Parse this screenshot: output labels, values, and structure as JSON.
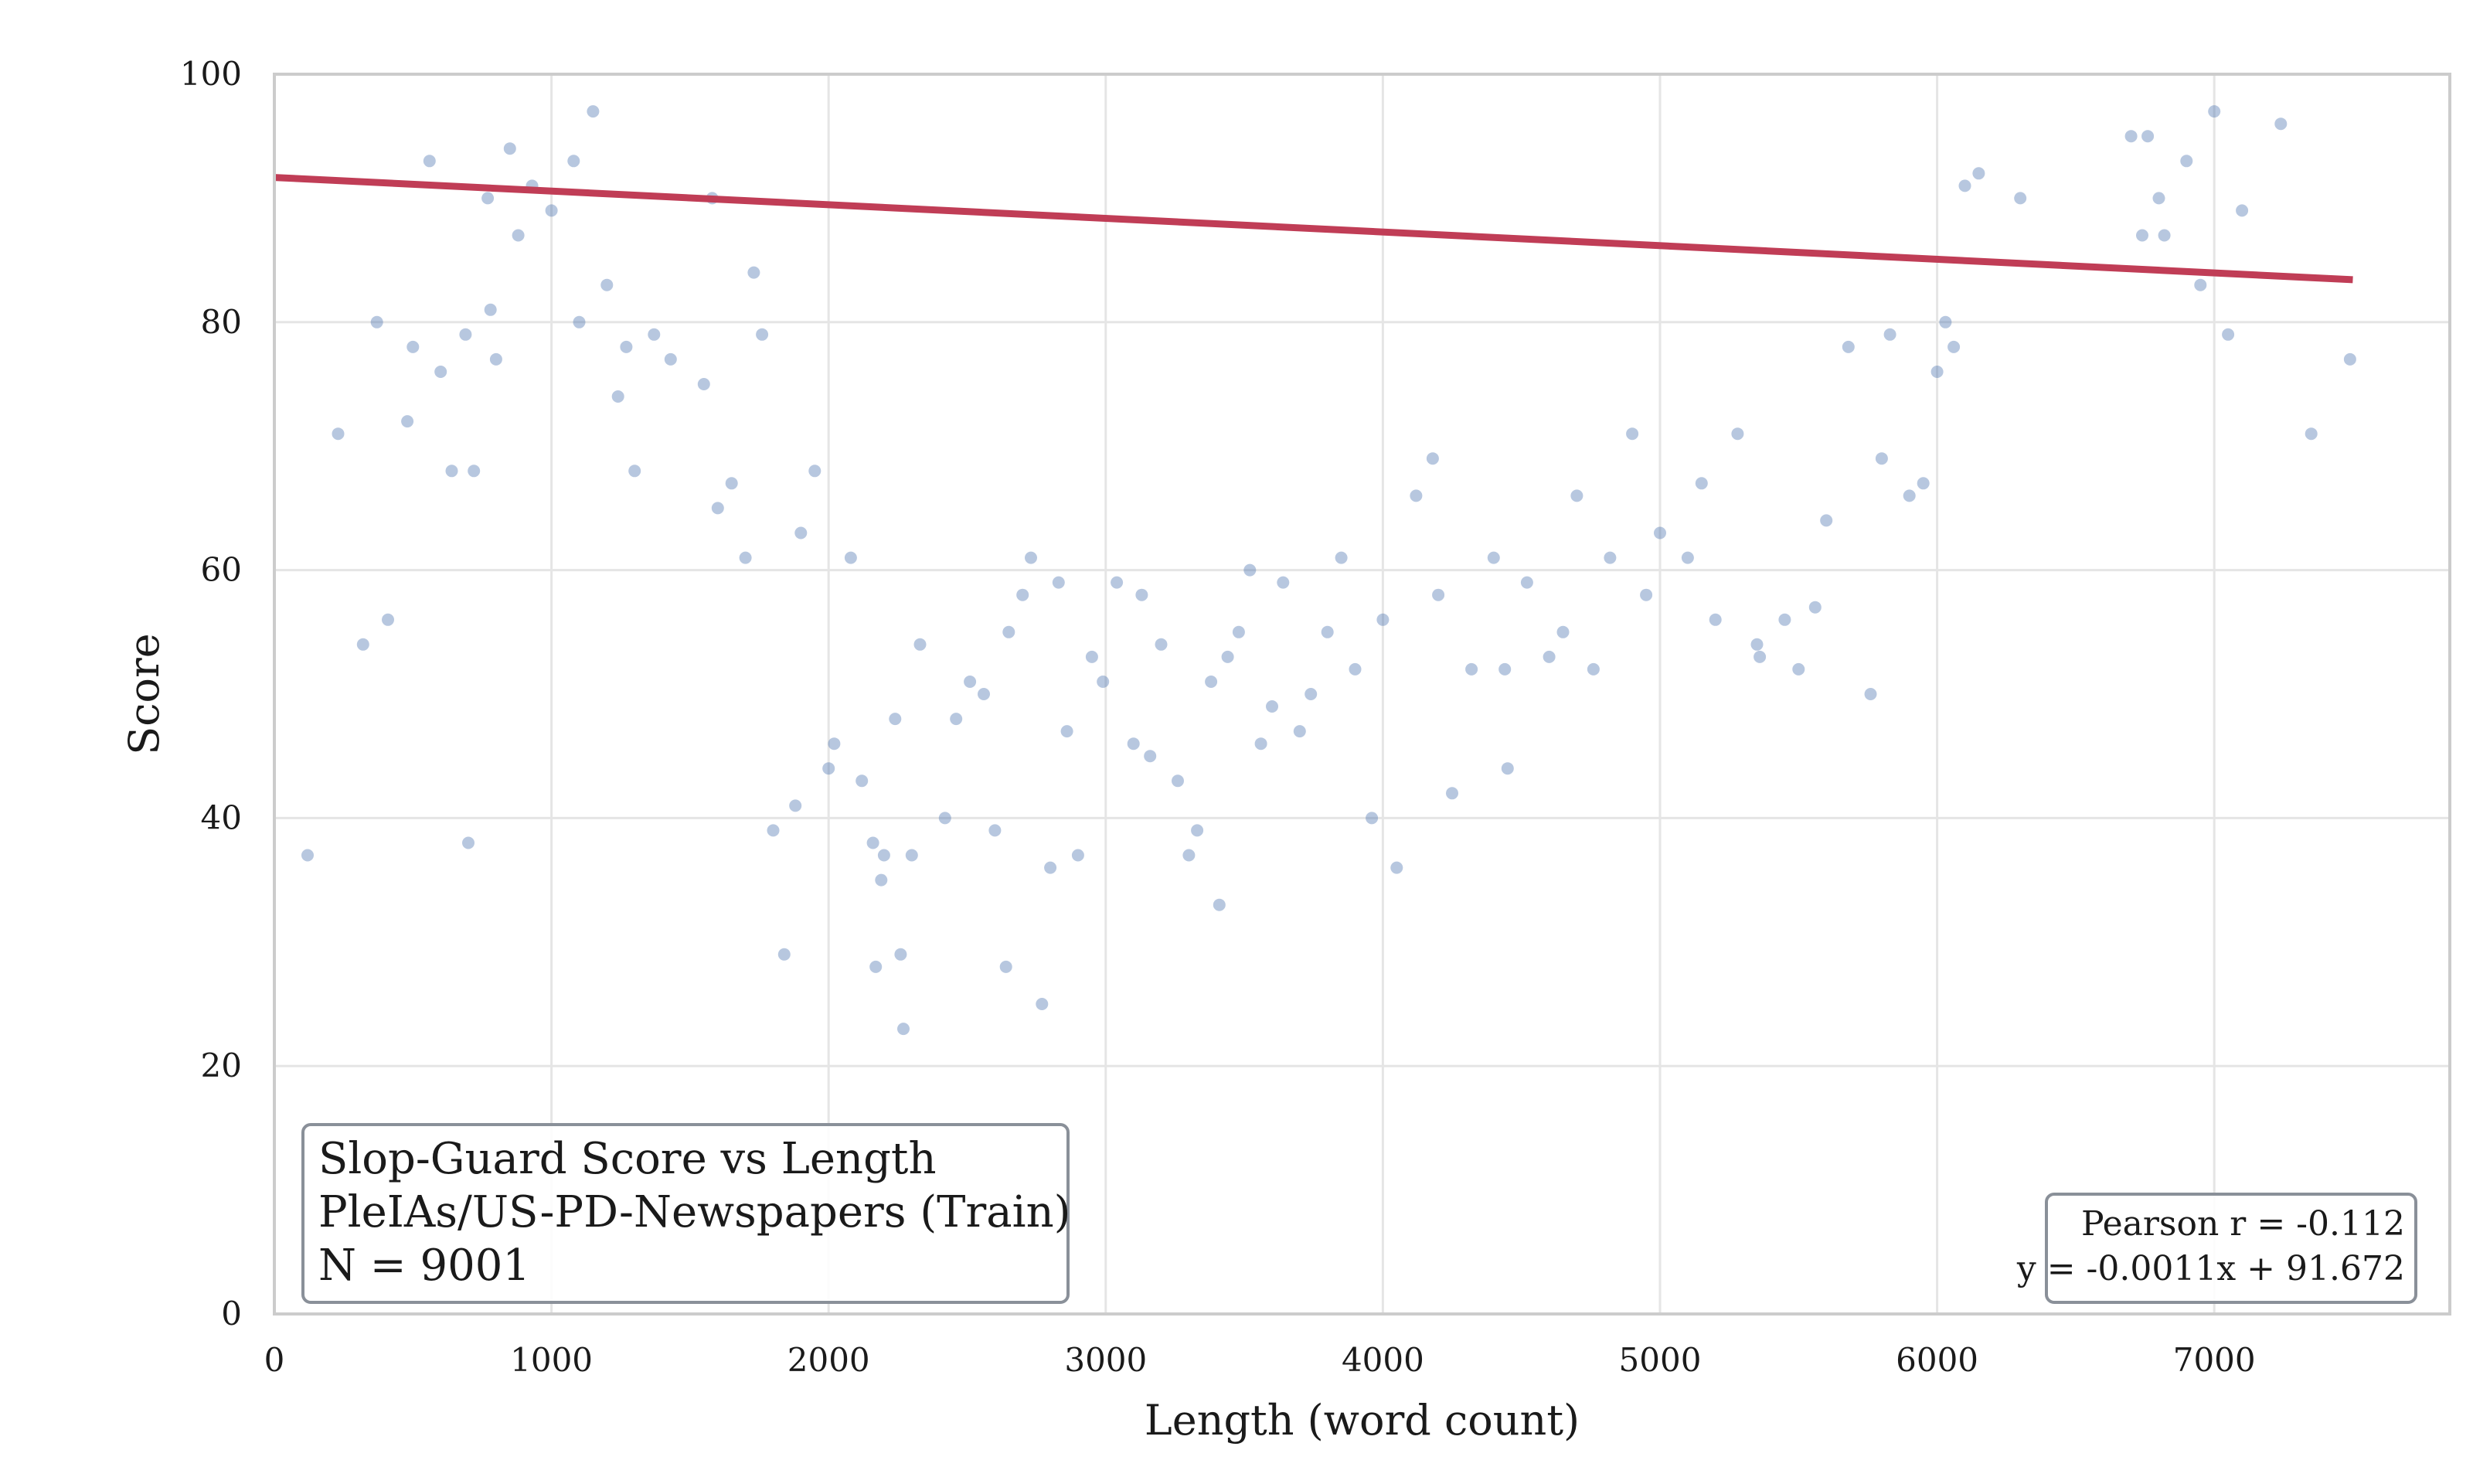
{
  "chart_data": {
    "type": "scatter",
    "title_lines": [
      "Slop-Guard Score vs Length",
      "PleIAs/US-PD-Newspapers (Train)",
      "N = 9001"
    ],
    "xlabel": "Length (word count)",
    "ylabel": "Score",
    "xlim": [
      0,
      7850
    ],
    "ylim": [
      0,
      100
    ],
    "x_ticks": [
      "0",
      "1000",
      "2000",
      "3000",
      "4000",
      "5000",
      "6000",
      "7000"
    ],
    "y_ticks": [
      "0",
      "20",
      "40",
      "60",
      "80",
      "100"
    ],
    "grid": true,
    "n": 9001,
    "stats": {
      "pearson": "Pearson r = -0.112",
      "equation": "y = -0.0011x + 91.672"
    },
    "regression": {
      "slope": -0.0011,
      "intercept": 91.672,
      "x_range": [
        0,
        7500
      ]
    },
    "colors": {
      "points": "#4c72b0",
      "regression": "#c03d56",
      "grid": "#e5e5e5",
      "frame": "#cccccc",
      "legend_border": "#8a9099"
    },
    "series": [
      {
        "points": [
          [
            120,
            37
          ],
          [
            230,
            71
          ],
          [
            320,
            54
          ],
          [
            370,
            80
          ],
          [
            410,
            56
          ],
          [
            480,
            72
          ],
          [
            500,
            78
          ],
          [
            560,
            93
          ],
          [
            600,
            76
          ],
          [
            640,
            68
          ],
          [
            690,
            79
          ],
          [
            700,
            38
          ],
          [
            720,
            68
          ],
          [
            770,
            90
          ],
          [
            780,
            81
          ],
          [
            800,
            77
          ],
          [
            850,
            94
          ],
          [
            880,
            87
          ],
          [
            930,
            91
          ],
          [
            1000,
            89
          ],
          [
            1080,
            93
          ],
          [
            1100,
            80
          ],
          [
            1150,
            97
          ],
          [
            1200,
            83
          ],
          [
            1240,
            74
          ],
          [
            1270,
            78
          ],
          [
            1300,
            68
          ],
          [
            1370,
            79
          ],
          [
            1430,
            77
          ],
          [
            1550,
            75
          ],
          [
            1580,
            90
          ],
          [
            1600,
            65
          ],
          [
            1650,
            67
          ],
          [
            1700,
            61
          ],
          [
            1730,
            84
          ],
          [
            1760,
            79
          ],
          [
            1800,
            39
          ],
          [
            1840,
            29
          ],
          [
            1880,
            41
          ],
          [
            1900,
            63
          ],
          [
            1950,
            68
          ],
          [
            2000,
            44
          ],
          [
            2020,
            46
          ],
          [
            2080,
            61
          ],
          [
            2120,
            43
          ],
          [
            2160,
            38
          ],
          [
            2170,
            28
          ],
          [
            2190,
            35
          ],
          [
            2200,
            37
          ],
          [
            2240,
            48
          ],
          [
            2260,
            29
          ],
          [
            2270,
            23
          ],
          [
            2300,
            37
          ],
          [
            2330,
            54
          ],
          [
            2420,
            40
          ],
          [
            2460,
            48
          ],
          [
            2510,
            51
          ],
          [
            2560,
            50
          ],
          [
            2600,
            39
          ],
          [
            2640,
            28
          ],
          [
            2650,
            55
          ],
          [
            2700,
            58
          ],
          [
            2730,
            61
          ],
          [
            2770,
            25
          ],
          [
            2800,
            36
          ],
          [
            2830,
            59
          ],
          [
            2860,
            47
          ],
          [
            2900,
            37
          ],
          [
            2950,
            53
          ],
          [
            2990,
            51
          ],
          [
            3040,
            59
          ],
          [
            3100,
            46
          ],
          [
            3130,
            58
          ],
          [
            3160,
            45
          ],
          [
            3200,
            54
          ],
          [
            3260,
            43
          ],
          [
            3300,
            37
          ],
          [
            3330,
            39
          ],
          [
            3380,
            51
          ],
          [
            3410,
            33
          ],
          [
            3440,
            53
          ],
          [
            3480,
            55
          ],
          [
            3520,
            60
          ],
          [
            3560,
            46
          ],
          [
            3600,
            49
          ],
          [
            3640,
            59
          ],
          [
            3700,
            47
          ],
          [
            3740,
            50
          ],
          [
            3800,
            55
          ],
          [
            3850,
            61
          ],
          [
            3900,
            52
          ],
          [
            3960,
            40
          ],
          [
            4000,
            56
          ],
          [
            4050,
            36
          ],
          [
            4120,
            66
          ],
          [
            4180,
            69
          ],
          [
            4200,
            58
          ],
          [
            4250,
            42
          ],
          [
            4320,
            52
          ],
          [
            4400,
            61
          ],
          [
            4440,
            52
          ],
          [
            4450,
            44
          ],
          [
            4520,
            59
          ],
          [
            4600,
            53
          ],
          [
            4650,
            55
          ],
          [
            4700,
            66
          ],
          [
            4760,
            52
          ],
          [
            4820,
            61
          ],
          [
            4900,
            71
          ],
          [
            4950,
            58
          ],
          [
            5000,
            63
          ],
          [
            5100,
            61
          ],
          [
            5150,
            67
          ],
          [
            5200,
            56
          ],
          [
            5280,
            71
          ],
          [
            5350,
            54
          ],
          [
            5360,
            53
          ],
          [
            5450,
            56
          ],
          [
            5500,
            52
          ],
          [
            5560,
            57
          ],
          [
            5600,
            64
          ],
          [
            5680,
            78
          ],
          [
            5760,
            50
          ],
          [
            5800,
            69
          ],
          [
            5830,
            79
          ],
          [
            5900,
            66
          ],
          [
            5950,
            67
          ],
          [
            6000,
            76
          ],
          [
            6030,
            80
          ],
          [
            6060,
            78
          ],
          [
            6100,
            91
          ],
          [
            6150,
            92
          ],
          [
            6300,
            90
          ],
          [
            6700,
            95
          ],
          [
            6740,
            87
          ],
          [
            6760,
            95
          ],
          [
            6800,
            90
          ],
          [
            6820,
            87
          ],
          [
            6900,
            93
          ],
          [
            6950,
            83
          ],
          [
            7000,
            97
          ],
          [
            7050,
            79
          ],
          [
            7100,
            89
          ],
          [
            7240,
            96
          ],
          [
            7350,
            71
          ],
          [
            7490,
            77
          ]
        ]
      }
    ]
  }
}
